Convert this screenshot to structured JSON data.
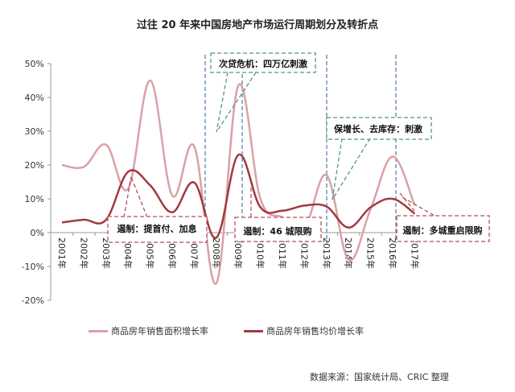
{
  "title": "过往 20 年来中国房地产市场运行周期划分及转折点",
  "source": "数据来源：国家统计局、CRIC 整理",
  "colors": {
    "area_growth": "#d9a1a6",
    "price_growth": "#a23a3e",
    "policy_box": "#b5525a",
    "stimulus_box": "#4e9a7e",
    "cycle_divider": "#4e79a7"
  },
  "legend": [
    {
      "label": "商品房年销售面积增长率",
      "color": "#d9a1a6"
    },
    {
      "label": "商品房年销售均价增长率",
      "color": "#a23a3e"
    }
  ],
  "annotations": {
    "stimulus": [
      {
        "label": "次贷危机：四万亿刺激"
      },
      {
        "label": "保增长、去库存：刺激"
      }
    ],
    "restriction": [
      {
        "label": "遏制：提首付、加息"
      },
      {
        "label": "遏制：46 城限购"
      },
      {
        "label": "遏制：多城重启限购"
      }
    ]
  },
  "chart_data": {
    "type": "line",
    "title": "过往 20 年来中国房地产市场运行周期划分及转折点",
    "xlabel": "",
    "ylabel": "",
    "ylim": [
      -20,
      50
    ],
    "yticks": [
      "50%",
      "40%",
      "30%",
      "20%",
      "10%",
      "0%",
      "-10%",
      "-20%"
    ],
    "categories": [
      "2001年",
      "2002年",
      "2003年",
      "2004年",
      "2005年",
      "2006年",
      "2007年",
      "2008年",
      "2009年",
      "2010年",
      "2011年",
      "2012年",
      "2013年",
      "2014年",
      "2015年",
      "2016年",
      "2017年"
    ],
    "series": [
      {
        "name": "商品房年销售面积增长率",
        "values": [
          20,
          19.5,
          26,
          13,
          45,
          11,
          25.5,
          -15,
          43.5,
          10,
          4.5,
          1.5,
          17,
          -8,
          7,
          22.5,
          8
        ]
      },
      {
        "name": "商品房年销售均价增长率",
        "values": [
          3,
          3.8,
          3.8,
          18,
          14,
          6,
          14.8,
          -1.5,
          23,
          7.5,
          6.5,
          8,
          7.7,
          1.5,
          7.5,
          10,
          5.6
        ]
      }
    ],
    "cycle_dividers": [
      "2007/2008",
      "2009",
      "2013",
      "2016"
    ],
    "legend_position": "bottom",
    "grid": false
  }
}
